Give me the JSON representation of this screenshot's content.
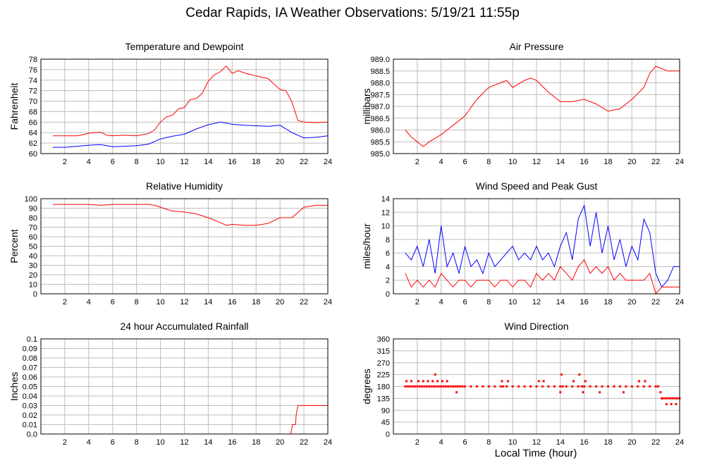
{
  "page": {
    "title": "Cedar Rapids, IA Weather Observations: 5/19/21 11:55p",
    "xlabel": "Local Time (hour)"
  },
  "colors": {
    "red": "#ff0000",
    "blue": "#0000ff",
    "grid": "#bdbdbd",
    "frame": "#000000"
  },
  "chart_data": [
    {
      "id": "temp",
      "type": "line",
      "title": "Temperature and Dewpoint",
      "ylabel": "Fahrenheit",
      "xlim": [
        0,
        24
      ],
      "ylim": [
        60,
        78
      ],
      "xticks": [
        2,
        4,
        6,
        8,
        10,
        12,
        14,
        16,
        18,
        20,
        22,
        24
      ],
      "yticks": [
        60,
        62,
        64,
        66,
        68,
        70,
        72,
        74,
        76,
        78
      ],
      "ytick_labels": [
        "60",
        "62",
        "64",
        "66",
        "68",
        "70",
        "72",
        "74",
        "76",
        "78"
      ],
      "grid": true,
      "series": [
        {
          "color": "#ff0000",
          "x": [
            1,
            2,
            3,
            3.5,
            4,
            5,
            5.5,
            6,
            7,
            8,
            9,
            9.5,
            10,
            10.5,
            11,
            11.5,
            12,
            12.5,
            13,
            13.5,
            14,
            14.5,
            15,
            15.5,
            16,
            16.5,
            17,
            18,
            19,
            20,
            20.5,
            21,
            21.5,
            22,
            23,
            24
          ],
          "y": [
            63.4,
            63.4,
            63.4,
            63.6,
            63.9,
            64.1,
            63.5,
            63.4,
            63.5,
            63.4,
            63.8,
            64.5,
            66,
            67,
            67.3,
            68.5,
            68.8,
            70.3,
            70.5,
            71.5,
            73.8,
            75,
            75.6,
            76.7,
            75.3,
            75.8,
            75.4,
            74.8,
            74.3,
            72.2,
            72,
            69.8,
            66.3,
            66,
            65.9,
            66
          ]
        },
        {
          "color": "#0000ff",
          "x": [
            1,
            2,
            3,
            4,
            5,
            6,
            7,
            8,
            9,
            10,
            11,
            12,
            13,
            14,
            15,
            16,
            17,
            18,
            19,
            20,
            21,
            22,
            23,
            24
          ],
          "y": [
            61.2,
            61.2,
            61.4,
            61.6,
            61.7,
            61.3,
            61.4,
            61.5,
            61.8,
            62.8,
            63.3,
            63.7,
            64.7,
            65.5,
            66,
            65.6,
            65.4,
            65.3,
            65.2,
            65.4,
            64,
            63,
            63.1,
            63.4
          ]
        }
      ]
    },
    {
      "id": "pressure",
      "type": "line",
      "title": "Air Pressure",
      "ylabel": "millibars",
      "xlim": [
        0,
        24
      ],
      "ylim": [
        985.0,
        989.0
      ],
      "xticks": [
        2,
        4,
        6,
        8,
        10,
        12,
        14,
        16,
        18,
        20,
        22,
        24
      ],
      "yticks": [
        985.0,
        985.5,
        986.0,
        986.5,
        987.0,
        987.5,
        988.0,
        988.5,
        989.0
      ],
      "ytick_labels": [
        "985.0",
        "985.5",
        "986.0",
        "986.5",
        "987.0",
        "987.5",
        "988.0",
        "988.5",
        "989.0"
      ],
      "grid": true,
      "series": [
        {
          "color": "#ff0000",
          "x": [
            1,
            1.5,
            2,
            2.5,
            3,
            4,
            5,
            6,
            7,
            8,
            9,
            9.5,
            10,
            11,
            11.5,
            12,
            13,
            14,
            15,
            16,
            17,
            18,
            19,
            20,
            21,
            21.5,
            22,
            22.5,
            23,
            24
          ],
          "y": [
            986.0,
            985.7,
            985.5,
            985.3,
            985.5,
            985.8,
            986.2,
            986.6,
            987.3,
            987.8,
            988.0,
            988.1,
            987.8,
            988.1,
            988.2,
            988.1,
            987.6,
            987.2,
            987.2,
            987.3,
            987.1,
            986.8,
            986.9,
            987.3,
            987.8,
            988.4,
            988.7,
            988.6,
            988.5,
            988.5
          ]
        }
      ]
    },
    {
      "id": "humidity",
      "type": "line",
      "title": "Relative Humidity",
      "ylabel": "Percent",
      "xlim": [
        0,
        24
      ],
      "ylim": [
        0,
        100
      ],
      "xticks": [
        2,
        4,
        6,
        8,
        10,
        12,
        14,
        16,
        18,
        20,
        22,
        24
      ],
      "yticks": [
        0,
        10,
        20,
        30,
        40,
        50,
        60,
        70,
        80,
        90,
        100
      ],
      "ytick_labels": [
        "0",
        "10",
        "20",
        "30",
        "40",
        "50",
        "60",
        "70",
        "80",
        "90",
        "100"
      ],
      "grid": true,
      "series": [
        {
          "color": "#ff0000",
          "x": [
            1,
            2,
            3,
            4,
            5,
            6,
            7,
            8,
            9,
            9.5,
            10,
            11,
            12,
            13,
            14,
            15,
            15.5,
            16,
            17,
            18,
            19,
            19.5,
            20,
            21,
            22,
            23,
            24
          ],
          "y": [
            94,
            94,
            94,
            94,
            93,
            94,
            94,
            94,
            94,
            93,
            91,
            87,
            86,
            84,
            80,
            75,
            72,
            73,
            72,
            72,
            74,
            77,
            80,
            80,
            91,
            93,
            93
          ]
        }
      ]
    },
    {
      "id": "wind",
      "type": "line",
      "title": "Wind Speed and Peak Gust",
      "ylabel": "miles/hour",
      "xlim": [
        0,
        24
      ],
      "ylim": [
        0,
        14
      ],
      "xticks": [
        2,
        4,
        6,
        8,
        10,
        12,
        14,
        16,
        18,
        20,
        22,
        24
      ],
      "yticks": [
        0,
        2,
        4,
        6,
        8,
        10,
        12,
        14
      ],
      "ytick_labels": [
        "0",
        "2",
        "4",
        "6",
        "8",
        "10",
        "12",
        "14"
      ],
      "grid": true,
      "series": [
        {
          "color": "#0000ff",
          "x": [
            1,
            1.5,
            2,
            2.5,
            3,
            3.5,
            4,
            4.5,
            5,
            5.5,
            6,
            6.5,
            7,
            7.5,
            8,
            8.5,
            9,
            9.5,
            10,
            10.5,
            11,
            11.5,
            12,
            12.5,
            13,
            13.5,
            14,
            14.5,
            15,
            15.5,
            16,
            16.5,
            17,
            17.5,
            18,
            18.5,
            19,
            19.5,
            20,
            20.5,
            21,
            21.5,
            22,
            22.5,
            23,
            23.5,
            24
          ],
          "y": [
            6,
            5,
            7,
            4,
            8,
            3,
            10,
            4,
            6,
            3,
            7,
            4,
            5,
            3,
            6,
            4,
            5,
            6,
            7,
            5,
            6,
            5,
            7,
            5,
            6,
            4,
            7,
            9,
            5,
            11,
            13,
            7,
            12,
            6,
            10,
            5,
            8,
            4,
            7,
            5,
            11,
            9,
            3,
            1,
            2,
            4,
            4
          ]
        },
        {
          "color": "#ff0000",
          "x": [
            1,
            1.5,
            2,
            2.5,
            3,
            3.5,
            4,
            4.5,
            5,
            5.5,
            6,
            6.5,
            7,
            7.5,
            8,
            8.5,
            9,
            9.5,
            10,
            10.5,
            11,
            11.5,
            12,
            12.5,
            13,
            13.5,
            14,
            14.5,
            15,
            15.5,
            16,
            16.5,
            17,
            17.5,
            18,
            18.5,
            19,
            19.5,
            20,
            20.5,
            21,
            21.5,
            22,
            22.5,
            23,
            23.5,
            24
          ],
          "y": [
            3,
            1,
            2,
            1,
            2,
            1,
            3,
            2,
            1,
            2,
            2,
            1,
            2,
            2,
            2,
            1,
            2,
            2,
            1,
            2,
            2,
            1,
            3,
            2,
            3,
            2,
            4,
            3,
            2,
            4,
            5,
            3,
            4,
            3,
            4,
            2,
            3,
            2,
            2,
            2,
            2,
            3,
            0,
            1,
            1,
            1,
            1
          ]
        }
      ]
    },
    {
      "id": "rain",
      "type": "line",
      "title": "24 hour Accumulated Rainfall",
      "ylabel": "Inches",
      "xlim": [
        0,
        24
      ],
      "ylim": [
        0,
        0.1
      ],
      "xticks": [
        2,
        4,
        6,
        8,
        10,
        12,
        14,
        16,
        18,
        20,
        22,
        24
      ],
      "yticks": [
        0,
        0.01,
        0.02,
        0.03,
        0.04,
        0.05,
        0.06,
        0.07,
        0.08,
        0.09,
        0.1
      ],
      "ytick_labels": [
        "0.0",
        "0.01",
        "0.02",
        "0.03",
        "0.04",
        "0.05",
        "0.06",
        "0.07",
        "0.08",
        "0.09",
        "0.1"
      ],
      "grid": true,
      "series": [
        {
          "color": "#ff0000",
          "x": [
            1,
            20.9,
            21.05,
            21.3,
            21.35,
            21.5,
            24
          ],
          "y": [
            0,
            0,
            0.01,
            0.01,
            0.02,
            0.03,
            0.03
          ]
        }
      ]
    },
    {
      "id": "direction",
      "type": "scatter",
      "title": "Wind Direction",
      "ylabel": "degrees",
      "xlim": [
        0,
        24
      ],
      "ylim": [
        0,
        360
      ],
      "xticks": [
        2,
        4,
        6,
        8,
        10,
        12,
        14,
        16,
        18,
        20,
        22,
        24
      ],
      "yticks": [
        0,
        45,
        90,
        135,
        180,
        225,
        270,
        315,
        360
      ],
      "ytick_labels": [
        "0",
        "45",
        "90",
        "135",
        "180",
        "225",
        "270",
        "315",
        "360"
      ],
      "grid": true,
      "series": [
        {
          "color": "#ff0000",
          "x": [
            1.0,
            1.2,
            1.4,
            1.6,
            1.8,
            2.0,
            2.2,
            2.4,
            2.6,
            2.8,
            3.0,
            3.2,
            3.4,
            3.6,
            3.8,
            4.0,
            4.2,
            4.4,
            4.6,
            4.8,
            5.0,
            5.2,
            5.4,
            5.6,
            5.8,
            6.0,
            6.5,
            7.0,
            7.5,
            8.0,
            8.5,
            9.0,
            9.2,
            9.5,
            10.0,
            10.5,
            11.0,
            11.5,
            12.0,
            12.5,
            13.0,
            13.5,
            14.0,
            14.2,
            14.5,
            15.0,
            15.5,
            15.8,
            16.0,
            16.5,
            17.0,
            17.5,
            18.0,
            18.5,
            19.0,
            19.5,
            20.0,
            20.5,
            21.0,
            21.5,
            22.0,
            22.2,
            22.4,
            22.6,
            22.8,
            23.0,
            23.2,
            23.4,
            23.6,
            23.8,
            24.0,
            1.1,
            1.5,
            2.1,
            2.5,
            2.9,
            3.3,
            3.7,
            4.1,
            4.5,
            9.1,
            9.6,
            12.2,
            12.6,
            15.1,
            16.1,
            20.6,
            21.1,
            3.5,
            14.1,
            15.6,
            5.3,
            14.0,
            17.3,
            19.3,
            22.9,
            23.3,
            23.7,
            22.5,
            15.9
          ],
          "y": [
            180,
            180,
            180,
            180,
            180,
            180,
            180,
            180,
            180,
            180,
            180,
            180,
            180,
            180,
            180,
            180,
            180,
            180,
            180,
            180,
            180,
            180,
            180,
            180,
            180,
            180,
            180,
            180,
            180,
            180,
            180,
            180,
            180,
            180,
            180,
            180,
            180,
            180,
            180,
            180,
            180,
            180,
            180,
            180,
            180,
            180,
            180,
            180,
            180,
            180,
            180,
            180,
            180,
            180,
            180,
            180,
            180,
            180,
            180,
            180,
            180,
            180,
            158,
            135,
            135,
            135,
            135,
            135,
            135,
            135,
            135,
            200,
            200,
            200,
            200,
            200,
            200,
            200,
            200,
            200,
            200,
            200,
            200,
            200,
            200,
            200,
            200,
            200,
            225,
            225,
            225,
            158,
            158,
            158,
            158,
            113,
            113,
            113,
            135,
            158
          ]
        }
      ]
    }
  ]
}
